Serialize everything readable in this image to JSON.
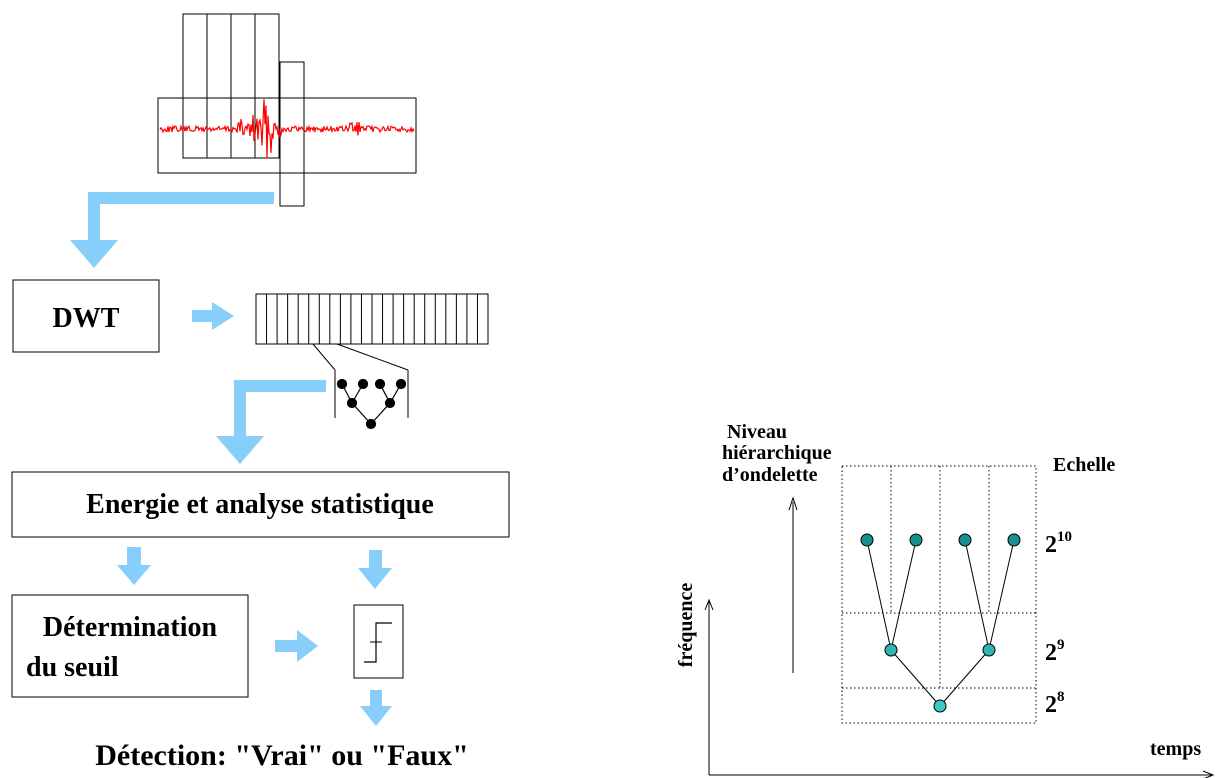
{
  "left_flow": {
    "dwt_label": "DWT",
    "energy_label": "Energie et analyse statistique",
    "threshold_line1": "Détermination",
    "threshold_line2": "du seuil",
    "detection_label": "Détection: \"Vrai\" ou \"Faux\""
  },
  "right_diagram": {
    "ylabel": "fréquence",
    "xlabel": "temps",
    "hierarchy_line1": "Niveau",
    "hierarchy_line2": "hiérarchique",
    "hierarchy_line3": "d’ondelette",
    "scale_header": "Echelle",
    "scales": [
      {
        "base": "2",
        "exponent": "10"
      },
      {
        "base": "2",
        "exponent": "9"
      },
      {
        "base": "2",
        "exponent": "8"
      }
    ]
  },
  "colors": {
    "arrow": "#87cefa",
    "signal": "#ff0000",
    "node_dark": "#1a8f8f",
    "node_light": "#3ec9c9",
    "line": "#000000"
  }
}
